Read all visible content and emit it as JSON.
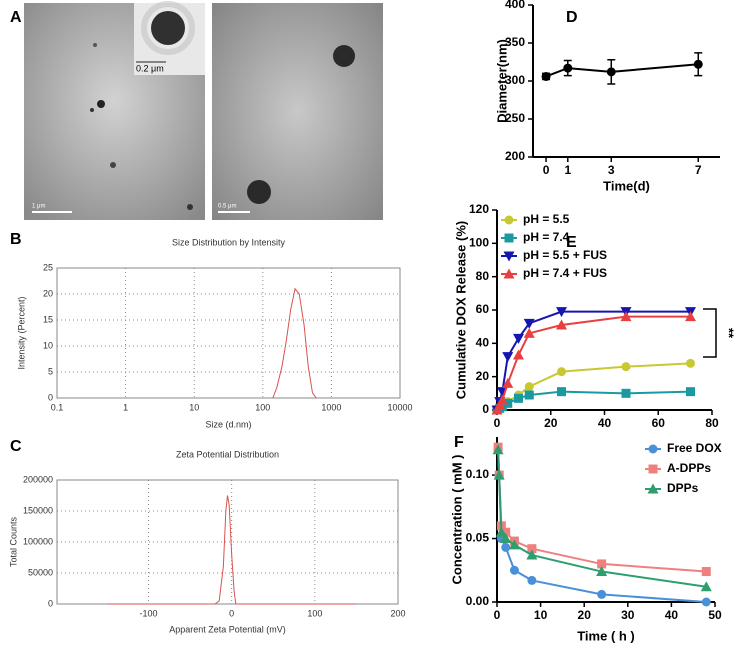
{
  "images": {
    "panel": "A",
    "scale_labels": [
      "1 μm",
      "0.2 μm",
      "0.5 μm"
    ]
  },
  "chart_data": [
    {
      "panel": "B",
      "type": "line",
      "title": "Size Distribution by Intensity",
      "x_label": "Size (d.nm)",
      "y_label": "Intensity (Percent)",
      "xlog": true,
      "x": [
        140,
        160,
        190,
        220,
        255,
        295,
        340,
        400,
        460,
        530,
        600
      ],
      "values": [
        0,
        2,
        6,
        11,
        17,
        21,
        20,
        14,
        6,
        1,
        0
      ],
      "color": "#d9534f",
      "xlim": [
        0.1,
        10000
      ],
      "xticks": [
        0.1,
        1,
        10,
        100,
        1000,
        10000
      ],
      "ylim": [
        0,
        25
      ],
      "yticks": [
        0,
        5,
        10,
        15,
        20,
        25
      ],
      "grid": true
    },
    {
      "panel": "C",
      "type": "line",
      "title": "Zeta Potential Distribution",
      "x_label": "Apparent Zeta Potential (mV)",
      "y_label": "Total Counts",
      "x": [
        -150,
        -20,
        -15,
        -10,
        -7,
        -5,
        -3,
        0,
        3,
        5,
        150
      ],
      "values": [
        0,
        0,
        5000,
        60000,
        150000,
        175000,
        160000,
        80000,
        20000,
        0,
        0
      ],
      "color": "#d9534f",
      "xlim": [
        -210,
        200
      ],
      "xticks": [
        -100,
        0,
        100,
        200
      ],
      "ylim": [
        0,
        200000
      ],
      "yticks": [
        0,
        50000,
        100000,
        150000,
        200000
      ],
      "grid": true
    },
    {
      "panel": "D",
      "type": "line",
      "x_label": "Time(d)",
      "y_label": "Diameter(nm)",
      "x": [
        0,
        1,
        3,
        7
      ],
      "values": [
        306,
        317,
        312,
        322
      ],
      "errors": [
        4,
        10,
        16,
        15
      ],
      "color": "#000000",
      "marker": "circle",
      "xlim": [
        -0.6,
        8
      ],
      "xticks": [
        0,
        1,
        3,
        7
      ],
      "ylim": [
        200,
        400
      ],
      "yticks": [
        200,
        250,
        300,
        350,
        400
      ],
      "grid": false
    },
    {
      "panel": "E",
      "type": "line",
      "y_label": "Cumulative DOX Release (%)",
      "annotation": "**",
      "legend": "upper left",
      "x": [
        0,
        1,
        2,
        4,
        8,
        12,
        24,
        48,
        72
      ],
      "series": [
        {
          "name": "pH = 5.5",
          "color": "#c8c832",
          "marker": "circle",
          "values": [
            0,
            1,
            3,
            5,
            9,
            14,
            23,
            26,
            28
          ]
        },
        {
          "name": "pH = 7.4",
          "color": "#1a9aa0",
          "marker": "square",
          "values": [
            0,
            1,
            2,
            4,
            7,
            9,
            11,
            10,
            11
          ]
        },
        {
          "name": "pH = 5.5 + FUS",
          "color": "#1515b0",
          "marker": "triangle-down",
          "values": [
            0,
            5,
            11,
            32,
            43,
            52,
            59,
            59,
            59
          ]
        },
        {
          "name": "pH = 7.4 + FUS",
          "color": "#e84040",
          "marker": "triangle-up",
          "values": [
            0,
            3,
            6,
            16,
            33,
            46,
            51,
            56,
            56
          ]
        }
      ],
      "xlim": [
        0,
        80
      ],
      "xticks": [
        0,
        20,
        40,
        60,
        80
      ],
      "ylim": [
        0,
        120
      ],
      "yticks": [
        0,
        20,
        40,
        60,
        80,
        100,
        120
      ],
      "grid": false
    },
    {
      "panel": "F",
      "type": "line",
      "x_label": "Time ( h )",
      "y_label": "Concentration ( mM )",
      "legend": "upper right",
      "x": [
        0.25,
        0.5,
        1,
        2,
        4,
        8,
        24,
        48
      ],
      "series": [
        {
          "name": "Free DOX",
          "color": "#4a90d9",
          "marker": "circle",
          "values": [
            0.12,
            0.1,
            0.05,
            0.043,
            0.025,
            0.017,
            0.006,
            0
          ]
        },
        {
          "name": "A-DPPs",
          "color": "#f08080",
          "marker": "square",
          "values": [
            0.122,
            0.1,
            0.06,
            0.055,
            0.048,
            0.042,
            0.03,
            0.024
          ]
        },
        {
          "name": "DPPs",
          "color": "#2e9e6e",
          "marker": "triangle-up",
          "values": [
            0.12,
            0.1,
            0.055,
            0.05,
            0.045,
            0.037,
            0.024,
            0.012
          ]
        }
      ],
      "xlim": [
        0,
        50
      ],
      "xticks": [
        0,
        10,
        20,
        30,
        40,
        50
      ],
      "ylim": [
        0,
        0.13
      ],
      "yticks": [
        {
          "value": 0,
          "label": "0.00"
        },
        {
          "value": 0.05,
          "label": "0.05"
        },
        {
          "value": 0.1,
          "label": "0.10"
        }
      ],
      "grid": false
    }
  ]
}
